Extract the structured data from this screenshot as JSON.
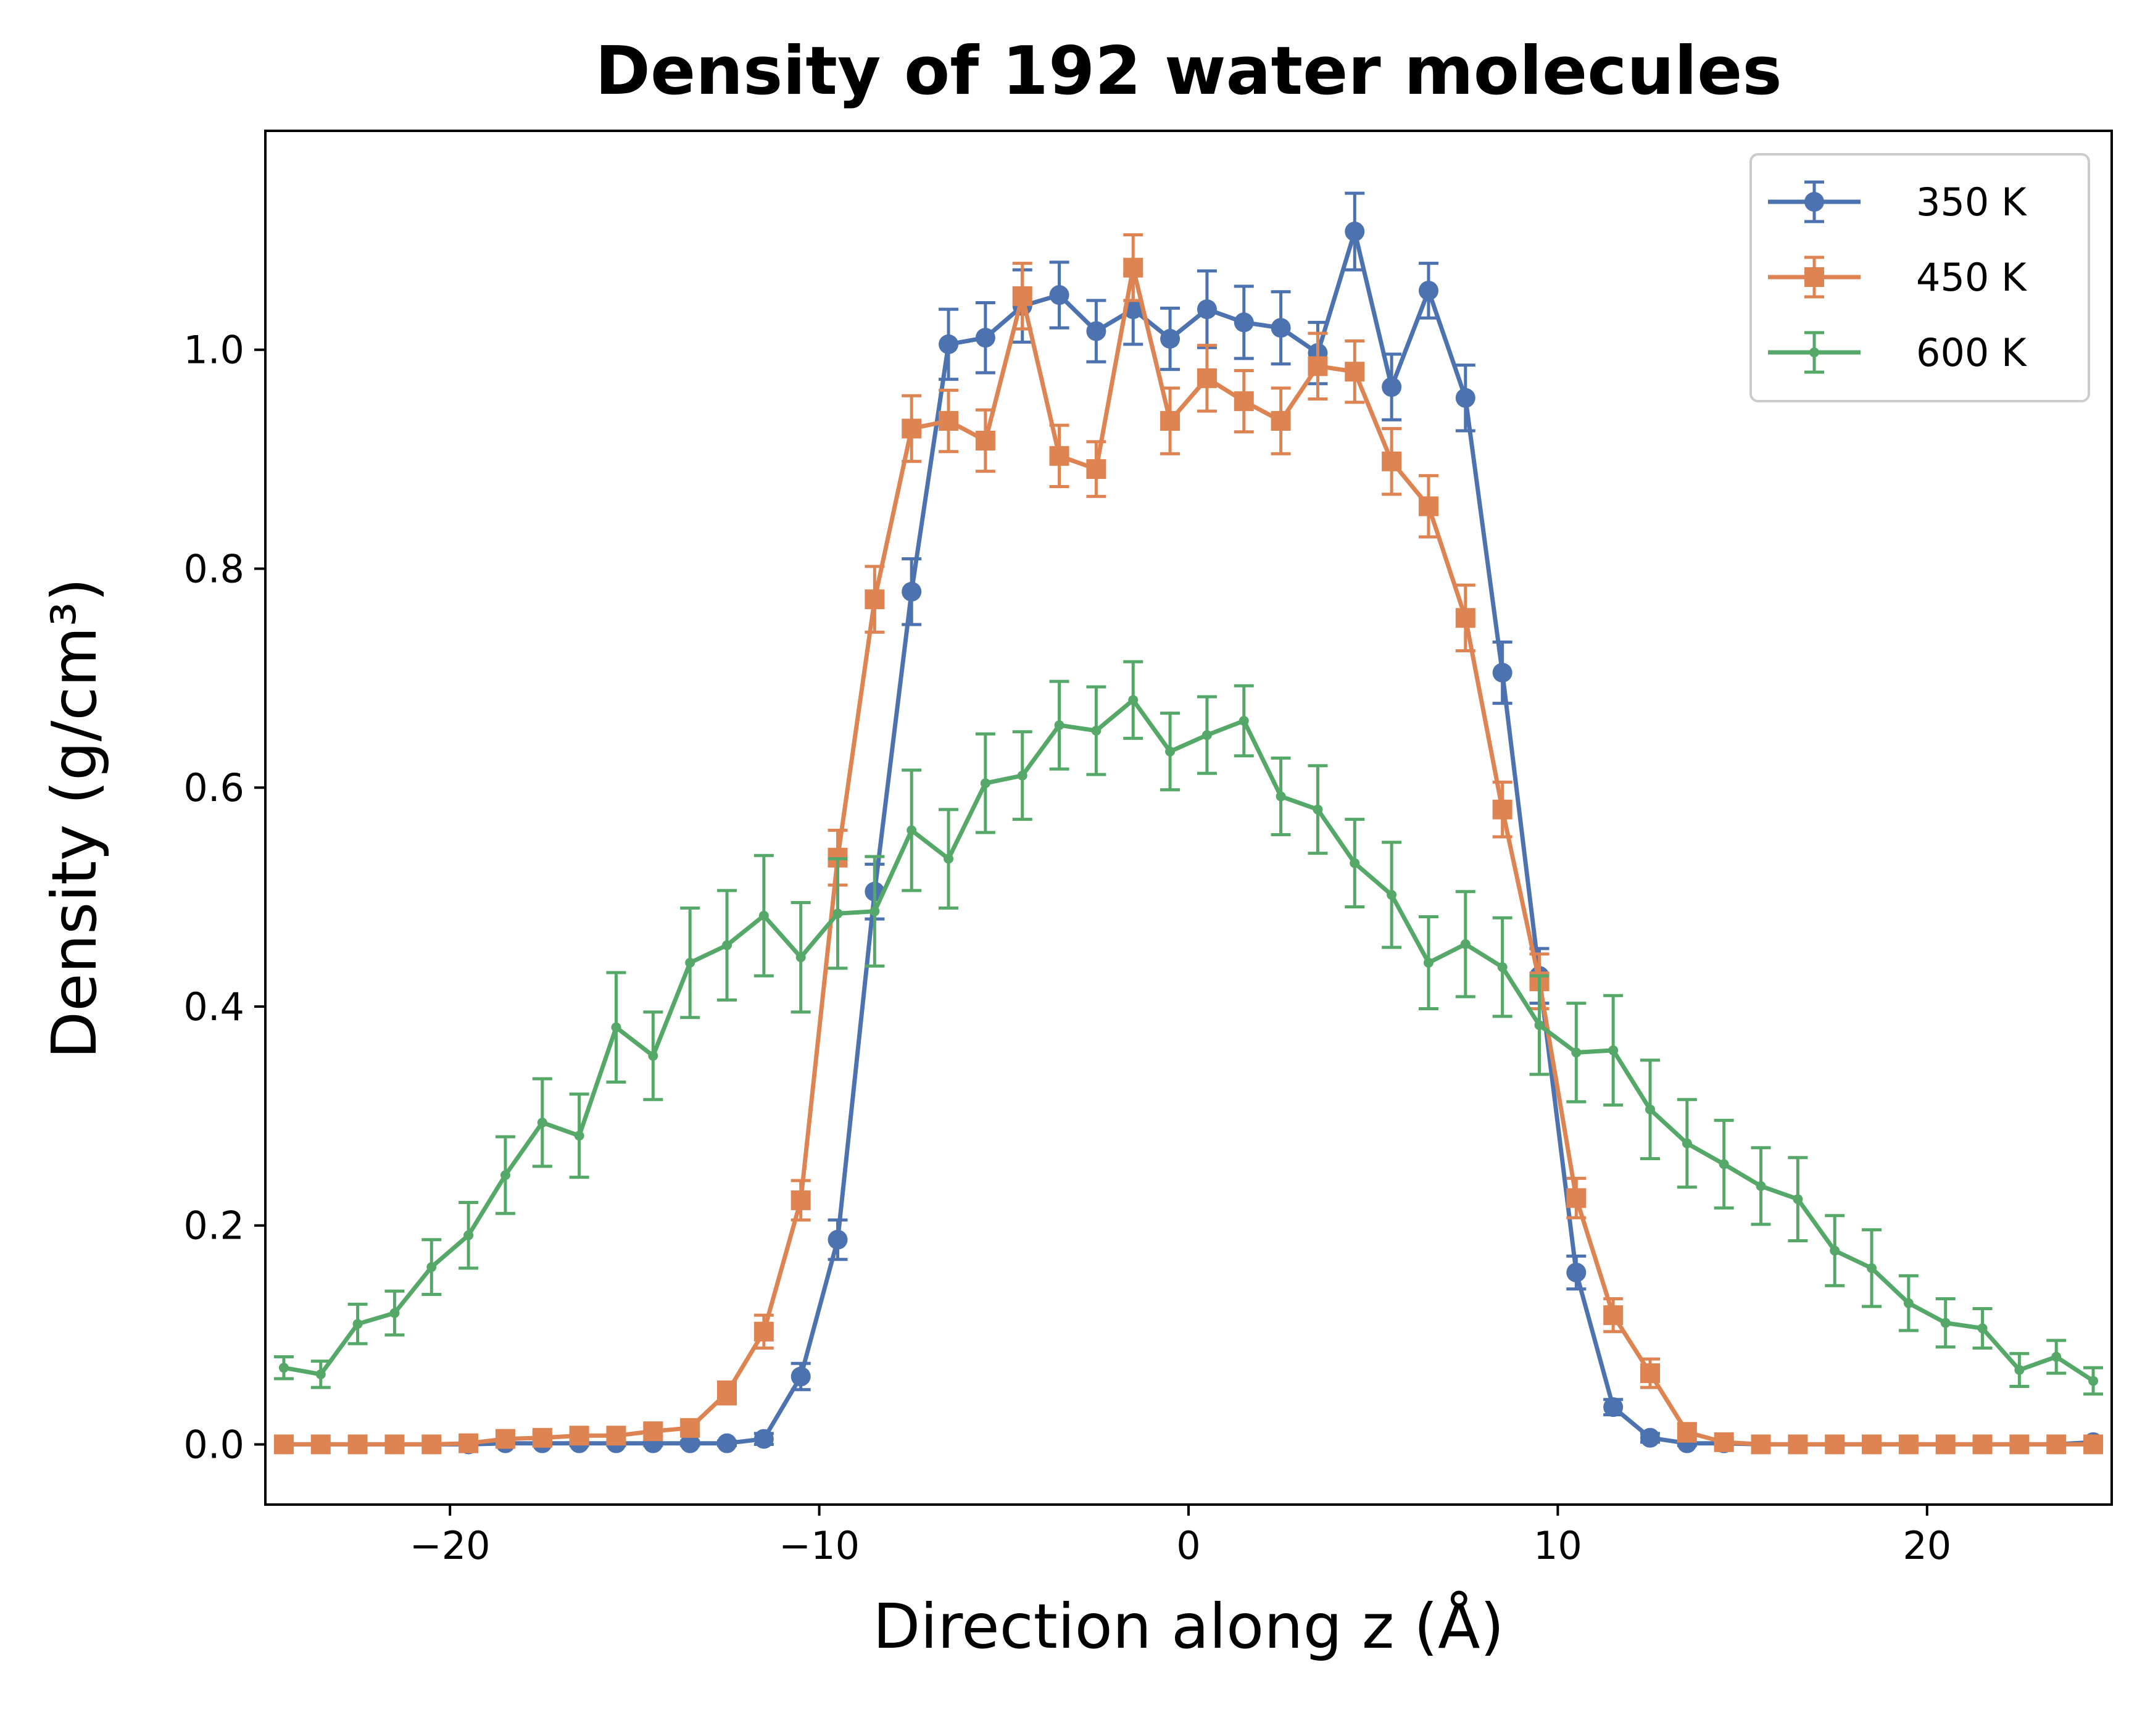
{
  "chart_data": {
    "type": "line",
    "title": "Density of 192 water molecules",
    "xlabel": "Direction along z (Å)",
    "ylabel": "Density (g/cm³)",
    "xlim": [
      -25,
      25
    ],
    "ylim": [
      -0.055,
      1.2
    ],
    "xticks": [
      -20,
      -10,
      0,
      10,
      20
    ],
    "xtick_labels": [
      "−20",
      "−10",
      "0",
      "10",
      "20"
    ],
    "yticks": [
      0.0,
      0.2,
      0.4,
      0.6,
      0.8,
      1.0
    ],
    "ytick_labels": [
      "0.0",
      "0.2",
      "0.4",
      "0.6",
      "0.8",
      "1.0"
    ],
    "grid": false,
    "legend_position": "top-right",
    "x": [
      -24.5,
      -23.5,
      -22.5,
      -21.5,
      -20.5,
      -19.5,
      -18.5,
      -17.5,
      -16.5,
      -15.5,
      -14.5,
      -13.5,
      -12.5,
      -11.5,
      -10.5,
      -9.5,
      -8.5,
      -7.5,
      -6.5,
      -5.5,
      -4.5,
      -3.5,
      -2.5,
      -1.5,
      -0.5,
      0.5,
      1.5,
      2.5,
      3.5,
      4.5,
      5.5,
      6.5,
      7.5,
      8.5,
      9.5,
      10.5,
      11.5,
      12.5,
      13.5,
      14.5,
      15.5,
      16.5,
      17.5,
      18.5,
      19.5,
      20.5,
      21.5,
      22.5,
      23.5,
      24.5
    ],
    "series": [
      {
        "name": "350 K",
        "color": "#4c72b0",
        "marker": "circle",
        "values": [
          0,
          0,
          0,
          0,
          0,
          0,
          0.001,
          0.001,
          0.001,
          0.001,
          0.001,
          0.001,
          0.001,
          0.005,
          0.062,
          0.187,
          0.505,
          0.779,
          1.005,
          1.011,
          1.04,
          1.05,
          1.017,
          1.037,
          1.01,
          1.037,
          1.025,
          1.02,
          0.997,
          1.108,
          0.966,
          1.054,
          0.956,
          0.705,
          0.428,
          0.157,
          0.034,
          0.006,
          0.001,
          0.001,
          0,
          0,
          0,
          0,
          0,
          0,
          0,
          0,
          0,
          0.002
        ],
        "errors": [
          0,
          0,
          0,
          0,
          0,
          0,
          0.002,
          0.002,
          0.002,
          0.002,
          0.002,
          0.002,
          0.002,
          0.005,
          0.012,
          0.018,
          0.025,
          0.03,
          0.032,
          0.032,
          0.033,
          0.03,
          0.028,
          0.032,
          0.028,
          0.035,
          0.033,
          0.033,
          0.028,
          0.035,
          0.03,
          0.025,
          0.03,
          0.028,
          0.025,
          0.015,
          0.007,
          0.004,
          0.002,
          0.002,
          0,
          0,
          0,
          0,
          0,
          0,
          0,
          0,
          0,
          0.002
        ]
      },
      {
        "name": "450 K",
        "color": "#dd8452",
        "marker": "square",
        "values": [
          0,
          0,
          0,
          0,
          0,
          0.001,
          0.005,
          0.006,
          0.008,
          0.008,
          0.012,
          0.015,
          0.047,
          0.103,
          0.223,
          0.536,
          0.772,
          0.928,
          0.935,
          0.917,
          1.049,
          0.903,
          0.891,
          1.075,
          0.935,
          0.974,
          0.953,
          0.935,
          0.985,
          0.98,
          0.898,
          0.857,
          0.755,
          0.58,
          0.423,
          0.225,
          0.118,
          0.065,
          0.011,
          0.002,
          0,
          0,
          0,
          0,
          0,
          0,
          0,
          0,
          0,
          0
        ],
        "errors": [
          0,
          0,
          0,
          0,
          0,
          0.002,
          0.003,
          0.003,
          0.003,
          0.003,
          0.005,
          0.006,
          0.01,
          0.015,
          0.018,
          0.025,
          0.03,
          0.03,
          0.028,
          0.028,
          0.03,
          0.028,
          0.025,
          0.03,
          0.03,
          0.03,
          0.028,
          0.03,
          0.03,
          0.028,
          0.03,
          0.028,
          0.03,
          0.025,
          0.025,
          0.018,
          0.015,
          0.013,
          0.008,
          0.003,
          0,
          0,
          0,
          0,
          0,
          0,
          0,
          0,
          0,
          0
        ]
      },
      {
        "name": "600 K",
        "color": "#55a868",
        "marker": "small",
        "values": [
          0.07,
          0.064,
          0.11,
          0.12,
          0.162,
          0.191,
          0.246,
          0.294,
          0.282,
          0.381,
          0.355,
          0.44,
          0.456,
          0.483,
          0.445,
          0.485,
          0.487,
          0.561,
          0.535,
          0.604,
          0.611,
          0.657,
          0.652,
          0.68,
          0.633,
          0.648,
          0.661,
          0.592,
          0.58,
          0.531,
          0.502,
          0.44,
          0.457,
          0.436,
          0.383,
          0.358,
          0.36,
          0.306,
          0.275,
          0.256,
          0.236,
          0.224,
          0.177,
          0.161,
          0.129,
          0.111,
          0.106,
          0.068,
          0.08,
          0.058
        ],
        "errors": [
          0.01,
          0.012,
          0.018,
          0.02,
          0.025,
          0.03,
          0.035,
          0.04,
          0.038,
          0.05,
          0.04,
          0.05,
          0.05,
          0.055,
          0.05,
          0.05,
          0.05,
          0.055,
          0.045,
          0.045,
          0.04,
          0.04,
          0.04,
          0.035,
          0.035,
          0.035,
          0.032,
          0.035,
          0.04,
          0.04,
          0.048,
          0.042,
          0.048,
          0.045,
          0.045,
          0.045,
          0.05,
          0.045,
          0.04,
          0.04,
          0.035,
          0.038,
          0.032,
          0.035,
          0.025,
          0.022,
          0.018,
          0.015,
          0.015,
          0.012
        ]
      }
    ]
  }
}
